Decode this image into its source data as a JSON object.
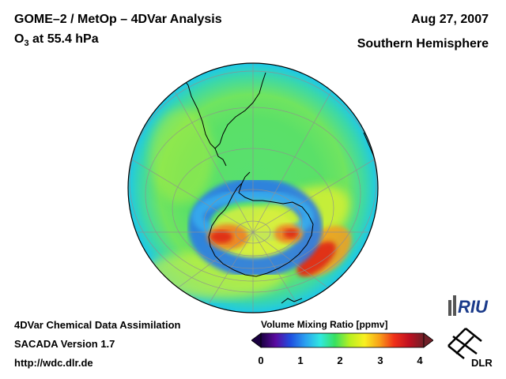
{
  "header": {
    "title": "GOME–2 / MetOp – 4DVar Analysis",
    "quantity_prefix": "O",
    "quantity_subscript": "3",
    "quantity_suffix": " at 55.4 hPa",
    "date": "Aug 27, 2007",
    "region": "Southern Hemisphere"
  },
  "footer": {
    "line1": "4DVar Chemical Data Assimilation",
    "line2": "SACADA Version 1.7",
    "line3": "http://wdc.dlr.de"
  },
  "colorbar": {
    "title": "Volume Mixing Ratio [ppmv]",
    "ticks": [
      "0",
      "1",
      "2",
      "3",
      "4"
    ],
    "range": [
      0,
      4
    ],
    "colors": [
      "#1a0040",
      "#5a0aa0",
      "#1f4fe0",
      "#2aa0f0",
      "#30e8e0",
      "#38e060",
      "#b8f020",
      "#f8f020",
      "#f8a018",
      "#f03018",
      "#c01020",
      "#702028"
    ]
  },
  "map": {
    "projection": "orthographic south polar",
    "colors": {
      "outer_ring": "#1ec8e8",
      "mid_band": "#58e070",
      "yellow_band": "#d8f030",
      "collar": "#2a7ae8",
      "hole": "#e04020",
      "coast": "#000000"
    }
  },
  "logos": {
    "riu": "RIU",
    "dlr": "DLR"
  }
}
